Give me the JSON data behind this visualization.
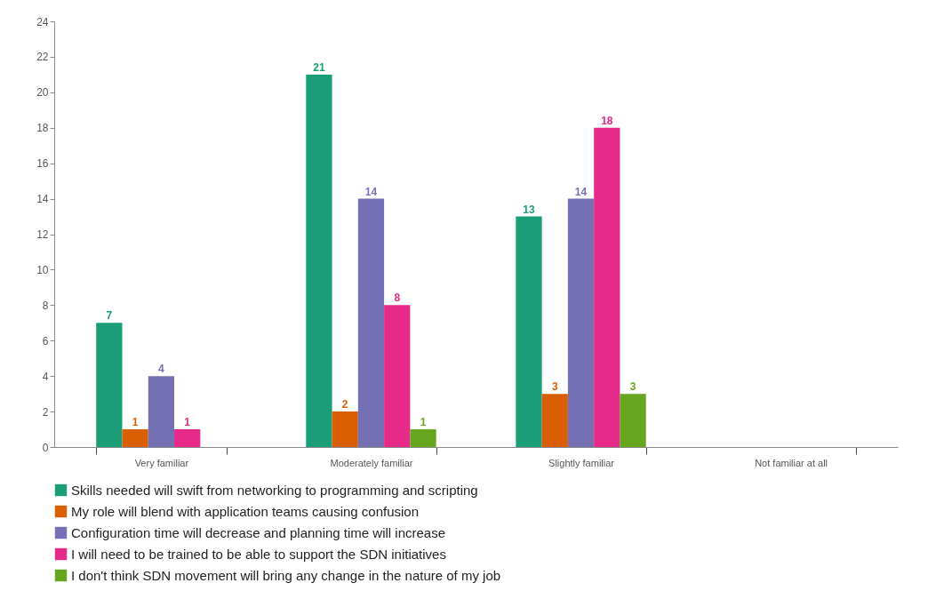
{
  "chart_data": {
    "type": "bar",
    "categories": [
      "Very familiar",
      "Moderately familiar",
      "Slightly familiar",
      "Not familiar at all"
    ],
    "series": [
      {
        "name": "Skills needed will swift from networking to programming and scripting",
        "color": "#1b9e77",
        "values": [
          7,
          21,
          13,
          null
        ]
      },
      {
        "name": "My role will blend with application teams causing confusion",
        "color": "#d95f02",
        "values": [
          1,
          2,
          3,
          null
        ]
      },
      {
        "name": "Configuration time will decrease and planning time will increase",
        "color": "#7570b3",
        "values": [
          4,
          14,
          14,
          null
        ]
      },
      {
        "name": "I will need to be trained to be able to support the SDN initiatives",
        "color": "#e7298a",
        "values": [
          1,
          8,
          18,
          null
        ]
      },
      {
        "name": "I don't think SDN movement will bring any change in the nature of my job",
        "color": "#66a61e",
        "values": [
          null,
          1,
          3,
          null
        ]
      }
    ],
    "ylim": [
      0,
      24
    ],
    "yticks": [
      0,
      2,
      4,
      6,
      8,
      10,
      12,
      14,
      16,
      18,
      20,
      22,
      24
    ],
    "data_labels": true,
    "legend": "bottom"
  }
}
